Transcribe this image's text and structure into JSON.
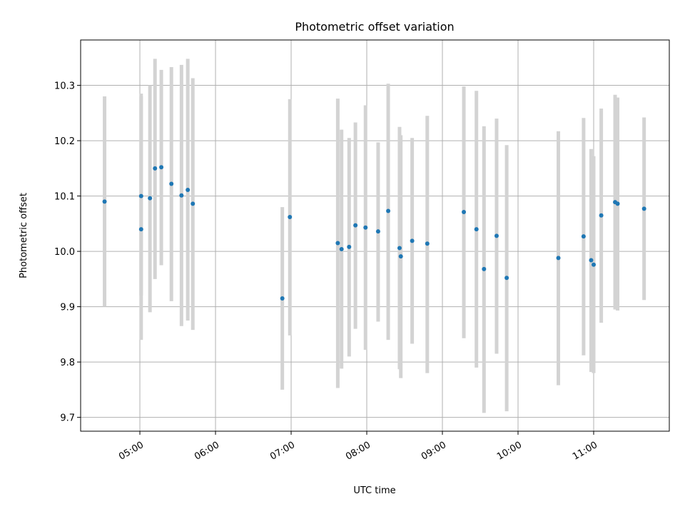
{
  "chart_data": {
    "type": "scatter",
    "title": "Photometric offset variation",
    "xlabel": "UTC time",
    "ylabel": "Photometric offset",
    "x_tick_labels": [
      "05:00",
      "06:00",
      "07:00",
      "08:00",
      "09:00",
      "10:00",
      "11:00"
    ],
    "y_tick_labels": [
      "9.7",
      "9.8",
      "9.9",
      "10.0",
      "10.1",
      "10.2",
      "10.3"
    ],
    "xlim": [
      "04:13",
      "12:00"
    ],
    "ylim": [
      9.675,
      10.382
    ],
    "grid": true,
    "colors": {
      "points": "#1f77b4",
      "error_bars": "#d3d3d3",
      "grid": "#b0b0b0"
    },
    "points": [
      {
        "time": "04:32",
        "y": 10.09,
        "err_low": 9.9,
        "err_high": 10.28
      },
      {
        "time": "05:01",
        "y": 10.04,
        "err_low": 9.84,
        "err_high": 10.285
      },
      {
        "time": "05:01",
        "y": 10.1,
        "err_low": 9.92,
        "err_high": 10.28
      },
      {
        "time": "05:08",
        "y": 10.096,
        "err_low": 9.89,
        "err_high": 10.3
      },
      {
        "time": "05:12",
        "y": 10.15,
        "err_low": 9.95,
        "err_high": 10.348
      },
      {
        "time": "05:17",
        "y": 10.152,
        "err_low": 9.975,
        "err_high": 10.328
      },
      {
        "time": "05:25",
        "y": 10.122,
        "err_low": 9.91,
        "err_high": 10.333
      },
      {
        "time": "05:33",
        "y": 10.101,
        "err_low": 9.865,
        "err_high": 10.337
      },
      {
        "time": "05:38",
        "y": 10.111,
        "err_low": 9.875,
        "err_high": 10.348
      },
      {
        "time": "05:42",
        "y": 10.086,
        "err_low": 9.858,
        "err_high": 10.313
      },
      {
        "time": "06:53",
        "y": 9.915,
        "err_low": 9.75,
        "err_high": 10.08
      },
      {
        "time": "06:59",
        "y": 10.062,
        "err_low": 9.848,
        "err_high": 10.275
      },
      {
        "time": "07:37",
        "y": 10.015,
        "err_low": 9.753,
        "err_high": 10.276
      },
      {
        "time": "07:40",
        "y": 10.004,
        "err_low": 9.788,
        "err_high": 10.22
      },
      {
        "time": "07:46",
        "y": 10.008,
        "err_low": 9.81,
        "err_high": 10.205
      },
      {
        "time": "07:51",
        "y": 10.047,
        "err_low": 9.86,
        "err_high": 10.233
      },
      {
        "time": "07:59",
        "y": 10.043,
        "err_low": 9.822,
        "err_high": 10.264
      },
      {
        "time": "08:09",
        "y": 10.036,
        "err_low": 9.873,
        "err_high": 10.197
      },
      {
        "time": "08:17",
        "y": 10.073,
        "err_low": 9.84,
        "err_high": 10.303
      },
      {
        "time": "08:26",
        "y": 10.006,
        "err_low": 9.787,
        "err_high": 10.225
      },
      {
        "time": "08:27",
        "y": 9.991,
        "err_low": 9.771,
        "err_high": 10.21
      },
      {
        "time": "08:36",
        "y": 10.019,
        "err_low": 9.833,
        "err_high": 10.205
      },
      {
        "time": "08:48",
        "y": 10.014,
        "err_low": 9.78,
        "err_high": 10.245
      },
      {
        "time": "09:17",
        "y": 10.071,
        "err_low": 9.843,
        "err_high": 10.298
      },
      {
        "time": "09:27",
        "y": 10.04,
        "err_low": 9.79,
        "err_high": 10.29
      },
      {
        "time": "09:33",
        "y": 9.968,
        "err_low": 9.708,
        "err_high": 10.226
      },
      {
        "time": "09:43",
        "y": 10.028,
        "err_low": 9.815,
        "err_high": 10.24
      },
      {
        "time": "09:51",
        "y": 9.952,
        "err_low": 9.711,
        "err_high": 10.192
      },
      {
        "time": "10:32",
        "y": 9.988,
        "err_low": 9.758,
        "err_high": 10.217
      },
      {
        "time": "10:52",
        "y": 10.027,
        "err_low": 9.812,
        "err_high": 10.241
      },
      {
        "time": "10:58",
        "y": 9.984,
        "err_low": 9.782,
        "err_high": 10.185
      },
      {
        "time": "11:00",
        "y": 9.976,
        "err_low": 9.78,
        "err_high": 10.172
      },
      {
        "time": "11:06",
        "y": 10.065,
        "err_low": 9.871,
        "err_high": 10.258
      },
      {
        "time": "11:17",
        "y": 10.089,
        "err_low": 9.895,
        "err_high": 10.283
      },
      {
        "time": "11:19",
        "y": 10.086,
        "err_low": 9.893,
        "err_high": 10.278
      },
      {
        "time": "11:40",
        "y": 10.077,
        "err_low": 9.912,
        "err_high": 10.242
      }
    ]
  }
}
